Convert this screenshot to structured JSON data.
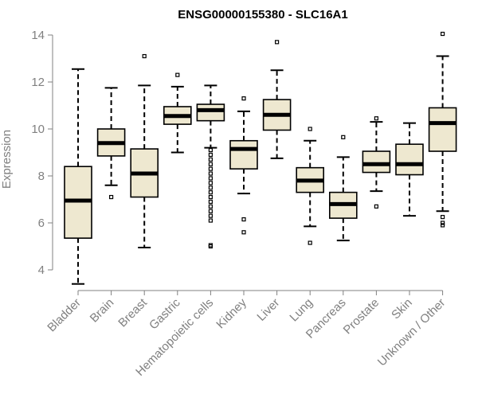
{
  "chart_data": {
    "type": "boxplot",
    "title": "ENSG00000155380 - SLC16A1",
    "xlabel": "",
    "ylabel": "Expression",
    "ylim": [
      3.2,
      14.4
    ],
    "yticks": [
      4,
      6,
      8,
      10,
      12,
      14
    ],
    "box_fill": "#EEE8D0",
    "categories": [
      "Bladder",
      "Brain",
      "Breast",
      "Gastric",
      "Hematopoietic cells",
      "Kidney",
      "Liver",
      "Lung",
      "Pancreas",
      "Prostate",
      "Skin",
      "Unknown / Other"
    ],
    "boxes": [
      {
        "category": "Bladder",
        "whisker_low": 3.4,
        "q1": 5.35,
        "median": 6.95,
        "q3": 8.4,
        "whisker_high": 12.55,
        "outliers": []
      },
      {
        "category": "Brain",
        "whisker_low": 7.6,
        "q1": 8.85,
        "median": 9.4,
        "q3": 10.0,
        "whisker_high": 11.75,
        "outliers": [
          7.1
        ]
      },
      {
        "category": "Breast",
        "whisker_low": 4.95,
        "q1": 7.1,
        "median": 8.1,
        "q3": 9.15,
        "whisker_high": 11.85,
        "outliers": [
          13.1
        ]
      },
      {
        "category": "Gastric",
        "whisker_low": 9.0,
        "q1": 10.2,
        "median": 10.55,
        "q3": 10.95,
        "whisker_high": 11.8,
        "outliers": [
          12.3
        ]
      },
      {
        "category": "Hematopoietic cells",
        "whisker_low": 9.2,
        "q1": 10.35,
        "median": 10.8,
        "q3": 11.05,
        "whisker_high": 11.85,
        "outliers": [
          9.1,
          8.9,
          8.7,
          8.5,
          8.3,
          8.1,
          7.9,
          7.7,
          7.5,
          7.3,
          7.1,
          6.9,
          6.7,
          6.5,
          6.3,
          6.1,
          5.05,
          5.0
        ]
      },
      {
        "category": "Kidney",
        "whisker_low": 7.25,
        "q1": 8.3,
        "median": 9.15,
        "q3": 9.5,
        "whisker_high": 10.75,
        "outliers": [
          11.3,
          6.15,
          5.6
        ]
      },
      {
        "category": "Liver",
        "whisker_low": 8.75,
        "q1": 9.95,
        "median": 10.6,
        "q3": 11.25,
        "whisker_high": 12.5,
        "outliers": [
          13.7
        ]
      },
      {
        "category": "Lung",
        "whisker_low": 5.85,
        "q1": 7.3,
        "median": 7.8,
        "q3": 8.35,
        "whisker_high": 9.5,
        "outliers": [
          10.0,
          5.15
        ]
      },
      {
        "category": "Pancreas",
        "whisker_low": 5.25,
        "q1": 6.2,
        "median": 6.8,
        "q3": 7.3,
        "whisker_high": 8.8,
        "outliers": [
          9.65
        ]
      },
      {
        "category": "Prostate",
        "whisker_low": 7.35,
        "q1": 8.15,
        "median": 8.5,
        "q3": 9.05,
        "whisker_high": 10.3,
        "outliers": [
          10.45,
          6.7
        ]
      },
      {
        "category": "Skin",
        "whisker_low": 6.3,
        "q1": 8.05,
        "median": 8.5,
        "q3": 9.35,
        "whisker_high": 10.25,
        "outliers": []
      },
      {
        "category": "Unknown / Other",
        "whisker_low": 6.5,
        "q1": 9.05,
        "median": 10.25,
        "q3": 10.9,
        "whisker_high": 13.1,
        "outliers": [
          14.05,
          6.25,
          6.0,
          5.9
        ]
      }
    ]
  }
}
